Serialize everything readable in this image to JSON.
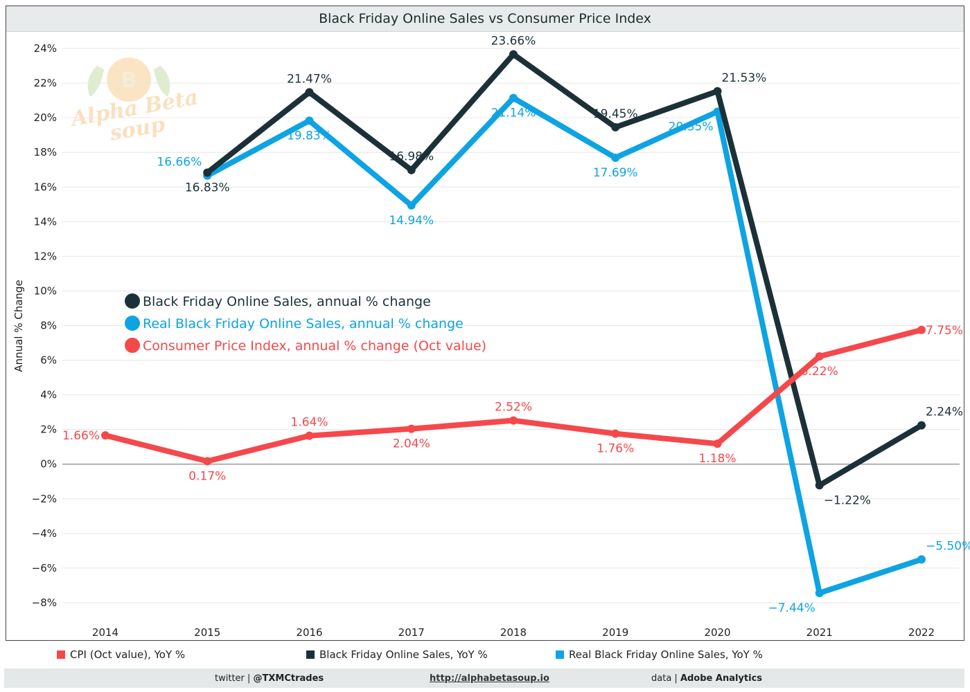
{
  "title": "Black Friday Online Sales vs Consumer Price Index",
  "watermark": {
    "line1": "Alpha Beta",
    "line2": "soup",
    "badge": "B"
  },
  "bottom_legend": [
    {
      "label": "CPI (Oct value), YoY %",
      "color": "#f5484b"
    },
    {
      "label": "Black Friday Online Sales, YoY %",
      "color": "#1b3137"
    },
    {
      "label": "Real Black Friday Online Sales, YoY %",
      "color": "#0ea3e3"
    }
  ],
  "footer": {
    "twitter_prefix": "twitter | ",
    "twitter_handle": "@TXMCtrades",
    "link": "http://alphabetasoup.io",
    "data_prefix": "data | ",
    "data_source": "Adobe Analytics"
  },
  "chart_data": {
    "type": "line",
    "title": "Black Friday Online Sales vs Consumer Price Index",
    "xlabel": "",
    "ylabel": "Annual % Change",
    "ylim": [
      -9,
      25
    ],
    "yticks": [
      -8,
      -6,
      -4,
      -2,
      0,
      2,
      4,
      6,
      8,
      10,
      12,
      14,
      16,
      18,
      20,
      22,
      24
    ],
    "ytick_labels": [
      "−8%",
      "−6%",
      "−4%",
      "−2%",
      "0%",
      "2%",
      "4%",
      "6%",
      "8%",
      "10%",
      "12%",
      "14%",
      "16%",
      "18%",
      "20%",
      "22%",
      "24%"
    ],
    "categories": [
      "2014",
      "2015",
      "2016",
      "2017",
      "2018",
      "2019",
      "2020",
      "2021",
      "2022"
    ],
    "grid": true,
    "legend_position": "center-left",
    "series": [
      {
        "name": "Black Friday Online Sales, annual % change",
        "color": "#1b3137",
        "values": [
          null,
          16.83,
          21.47,
          16.98,
          23.66,
          19.45,
          21.53,
          -1.22,
          2.24
        ],
        "labels": [
          "",
          "16.83%",
          "21.47%",
          "16.98%",
          "23.66%",
          "19.45%",
          "21.53%",
          "−1.22%",
          "2.24%"
        ],
        "label_pos": [
          "",
          "below",
          "above",
          "above",
          "above",
          "above",
          "above-right",
          "below-right",
          "above-right"
        ]
      },
      {
        "name": "Real Black Friday Online Sales, annual % change",
        "color": "#0ea3e3",
        "values": [
          null,
          16.66,
          19.83,
          14.94,
          21.14,
          17.69,
          20.35,
          -7.44,
          -5.5
        ],
        "labels": [
          "",
          "16.66%",
          "19.83%",
          "14.94%",
          "21.14%",
          "17.69%",
          "20.35%",
          "−7.44%",
          "−5.50%"
        ],
        "label_pos": [
          "",
          "above-left",
          "below",
          "below",
          "below",
          "below",
          "below-left",
          "below-left",
          "above-right"
        ]
      },
      {
        "name": "Consumer Price Index, annual % change (Oct value)",
        "color": "#f5484b",
        "values": [
          1.66,
          0.17,
          1.64,
          2.04,
          2.52,
          1.76,
          1.18,
          6.22,
          7.75
        ],
        "labels": [
          "1.66%",
          "0.17%",
          "1.64%",
          "2.04%",
          "2.52%",
          "1.76%",
          "1.18%",
          "6.22%",
          "7.75%"
        ],
        "label_pos": [
          "left",
          "below",
          "above",
          "below",
          "above",
          "below",
          "below",
          "below",
          "right"
        ]
      }
    ]
  }
}
